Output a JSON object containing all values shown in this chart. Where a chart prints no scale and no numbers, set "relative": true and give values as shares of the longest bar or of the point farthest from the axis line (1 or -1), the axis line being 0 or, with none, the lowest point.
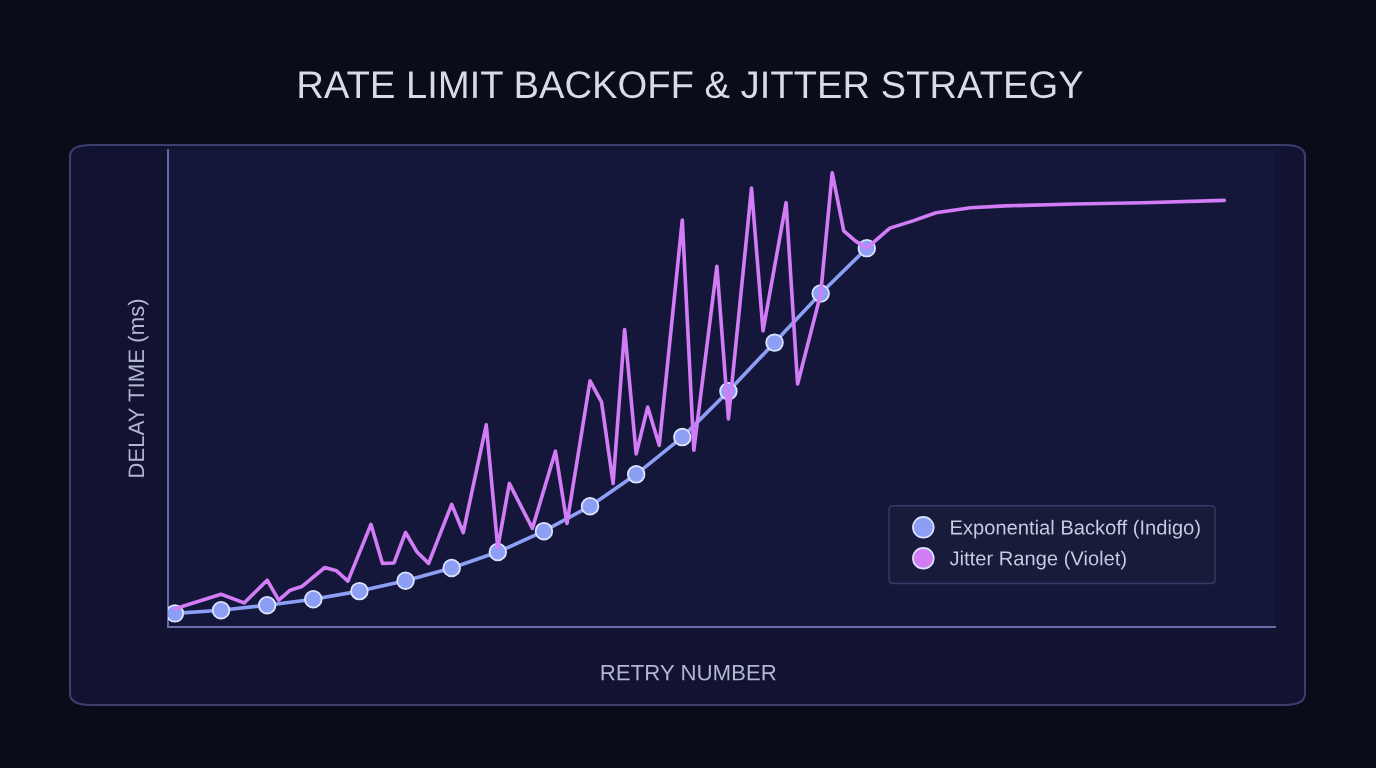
{
  "chart_data": {
    "type": "line",
    "title": "RATE LIMIT BACKOFF & JITTER STRATEGY",
    "xlabel": "RETRY NUMBER",
    "ylabel": "DELAY TIME (ms)",
    "relative": true,
    "tick_labels": false,
    "legend": "bottom right",
    "categories": [
      null,
      null,
      null,
      null,
      null,
      null,
      null,
      null,
      null,
      null,
      null,
      null,
      null,
      null,
      null,
      null,
      null,
      null,
      null,
      null,
      null,
      null,
      null,
      null,
      null,
      null,
      null,
      null,
      null,
      null,
      null,
      null,
      null,
      null,
      null,
      null,
      null,
      null,
      null,
      null,
      null,
      null,
      null,
      null,
      null,
      null,
      null,
      null,
      null,
      null,
      null,
      null,
      null,
      null,
      null,
      null,
      null,
      null,
      null,
      null,
      null,
      null,
      null,
      null,
      null,
      null,
      null,
      null,
      null,
      null,
      null,
      null,
      null,
      null,
      null,
      null,
      null,
      null,
      null,
      null,
      null,
      null,
      null,
      null,
      null,
      null,
      null,
      null,
      null,
      null,
      null,
      null
    ],
    "series": [
      {
        "name": "Exponential Backoff (Indigo)",
        "color": "#8c9ff5",
        "marker": "circle",
        "values": [
          0.03,
          null,
          null,
          null,
          0.037,
          null,
          null,
          null,
          0.048,
          null,
          null,
          null,
          0.061,
          null,
          null,
          null,
          0.079,
          null,
          null,
          null,
          0.102,
          null,
          null,
          null,
          0.13,
          null,
          null,
          null,
          0.165,
          null,
          null,
          null,
          0.211,
          null,
          null,
          null,
          0.266,
          null,
          null,
          null,
          0.336,
          null,
          null,
          null,
          0.418,
          null,
          null,
          null,
          0.519,
          null,
          null,
          null,
          0.626,
          null,
          null,
          null,
          0.734,
          null,
          null,
          null,
          0.834,
          null,
          null,
          null,
          null,
          null,
          null,
          null,
          null,
          null,
          null,
          null,
          null,
          null,
          null,
          null,
          null,
          null,
          null,
          null,
          null,
          null,
          null,
          null,
          null,
          null,
          null,
          null,
          null,
          null,
          null,
          null
        ]
      },
      {
        "name": "Jitter Range (Violet)",
        "color": "#d27cf6",
        "marker": "none",
        "values": [
          0.04,
          null,
          null,
          null,
          0.072,
          null,
          0.053,
          null,
          0.103,
          0.059,
          0.081,
          0.089,
          null,
          0.131,
          0.124,
          0.101,
          null,
          0.226,
          0.14,
          0.141,
          0.208,
          0.165,
          0.14,
          null,
          0.27,
          0.208,
          null,
          0.445,
          0.174,
          0.316,
          null,
          0.217,
          null,
          0.387,
          0.228,
          null,
          0.542,
          0.495,
          0.316,
          0.655,
          0.381,
          0.484,
          0.4,
          null,
          0.896,
          0.389,
          null,
          0.794,
          0.458,
          null,
          0.966,
          0.652,
          null,
          0.934,
          0.535,
          null,
          0.733,
          1.0,
          0.872,
          0.85,
          0.834,
          null,
          0.878,
          null,
          0.894,
          null,
          0.912,
          null,
          null,
          0.923,
          null,
          null,
          0.927,
          null,
          null,
          null,
          null,
          null,
          0.931,
          null,
          null,
          null,
          null,
          null,
          0.934,
          null,
          null,
          null,
          null,
          null,
          null,
          0.939
        ]
      }
    ]
  }
}
